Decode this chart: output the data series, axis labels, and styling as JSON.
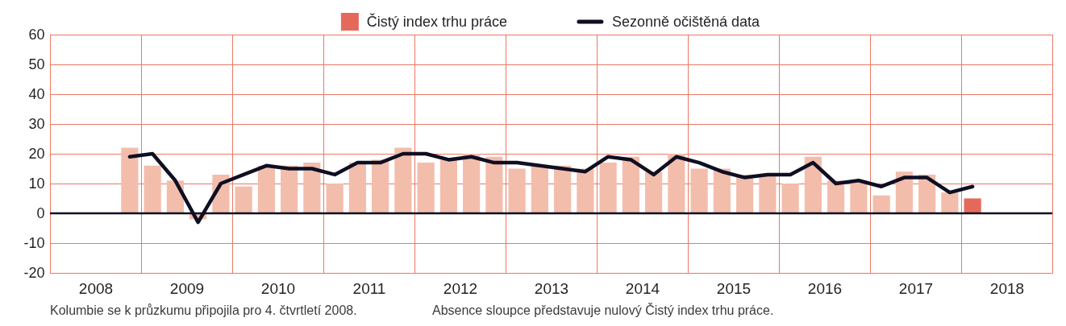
{
  "chart_data": {
    "type": "bar",
    "legend": "top",
    "grid": true,
    "marker": "none",
    "xlim": [
      2008,
      2019
    ],
    "xticks": [
      {
        "value": 2008,
        "label": null
      },
      {
        "value": 2008.5,
        "label": "2008"
      },
      {
        "value": 2009,
        "label": null
      },
      {
        "value": 2009.5,
        "label": "2009"
      },
      {
        "value": 2010,
        "label": null
      },
      {
        "value": 2010.5,
        "label": "2010"
      },
      {
        "value": 2011,
        "label": null
      },
      {
        "value": 2011.5,
        "label": "2011"
      },
      {
        "value": 2012,
        "label": null
      },
      {
        "value": 2012.5,
        "label": "2012"
      },
      {
        "value": 2013,
        "label": null
      },
      {
        "value": 2013.5,
        "label": "2013"
      },
      {
        "value": 2014,
        "label": null
      },
      {
        "value": 2014.5,
        "label": "2014"
      },
      {
        "value": 2015,
        "label": null
      },
      {
        "value": 2015.5,
        "label": "2015"
      },
      {
        "value": 2016,
        "label": null
      },
      {
        "value": 2016.5,
        "label": "2016"
      },
      {
        "value": 2017,
        "label": null
      },
      {
        "value": 2017.5,
        "label": "2017"
      },
      {
        "value": 2018,
        "label": null
      },
      {
        "value": 2018.5,
        "label": "2018"
      },
      {
        "value": 2019,
        "label": null
      }
    ],
    "ylim": [
      -20,
      60
    ],
    "yticks": [
      -20,
      -10,
      0,
      10,
      20,
      30,
      40,
      50,
      60
    ],
    "ref_lines": [
      {
        "axis": "y",
        "value": 0,
        "color": "#0e0f22"
      }
    ],
    "annotations": [
      "Kolumbie se k průzkumu připojila pro 4. čtvrtletí 2008.",
      "Absence sloupce představuje nulový Čistý index trhu práce."
    ],
    "x": [
      2008.875,
      2009.125,
      2009.375,
      2009.625,
      2009.875,
      2010.125,
      2010.375,
      2010.625,
      2010.875,
      2011.125,
      2011.375,
      2011.625,
      2011.875,
      2012.125,
      2012.375,
      2012.625,
      2012.875,
      2013.125,
      2013.375,
      2013.625,
      2013.875,
      2014.125,
      2014.375,
      2014.625,
      2014.875,
      2015.125,
      2015.375,
      2015.625,
      2015.875,
      2016.125,
      2016.375,
      2016.625,
      2016.875,
      2017.125,
      2017.375,
      2017.625,
      2017.875,
      2018.125
    ],
    "series": [
      {
        "name": "Čistý index trhu práce",
        "color": "#e5695a",
        "colors": [
          "#f3bdac",
          "#f3bdac",
          "#f3bdac",
          "#f3bdac",
          "#f3bdac",
          "#f3bdac",
          "#f3bdac",
          "#f3bdac",
          "#f3bdac",
          "#f3bdac",
          "#f3bdac",
          "#f3bdac",
          "#f3bdac",
          "#f3bdac",
          "#f3bdac",
          "#f3bdac",
          "#f3bdac",
          "#f3bdac",
          "#f3bdac",
          "#f3bdac",
          "#f3bdac",
          "#f3bdac",
          "#f3bdac",
          "#f3bdac",
          "#f3bdac",
          "#f3bdac",
          "#f3bdac",
          "#f3bdac",
          "#f3bdac",
          "#f3bdac",
          "#f3bdac",
          "#f3bdac",
          "#f3bdac",
          "#f3bdac",
          "#f3bdac",
          "#f3bdac",
          "#f3bdac",
          "#e5695a"
        ],
        "values": [
          22,
          16,
          11,
          -2,
          13,
          9,
          16,
          16,
          17,
          10,
          17,
          18,
          22,
          17,
          18,
          20,
          19,
          15,
          16,
          16,
          15,
          17,
          19,
          14,
          20,
          15,
          15,
          13,
          13,
          10,
          19,
          11,
          11,
          6,
          14,
          13,
          7,
          5
        ]
      },
      {
        "name": "Sezonně očištěná data",
        "type": "line",
        "color": "#0e0f22",
        "line_style": "solid",
        "values": [
          19,
          20,
          11,
          -3,
          10,
          13,
          16,
          15,
          15,
          13,
          17,
          17,
          20,
          20,
          18,
          19,
          17,
          17,
          16,
          15,
          14,
          19,
          18,
          13,
          19,
          17,
          14,
          12,
          13,
          13,
          17,
          10,
          11,
          9,
          12,
          12,
          7,
          9
        ]
      }
    ]
  }
}
